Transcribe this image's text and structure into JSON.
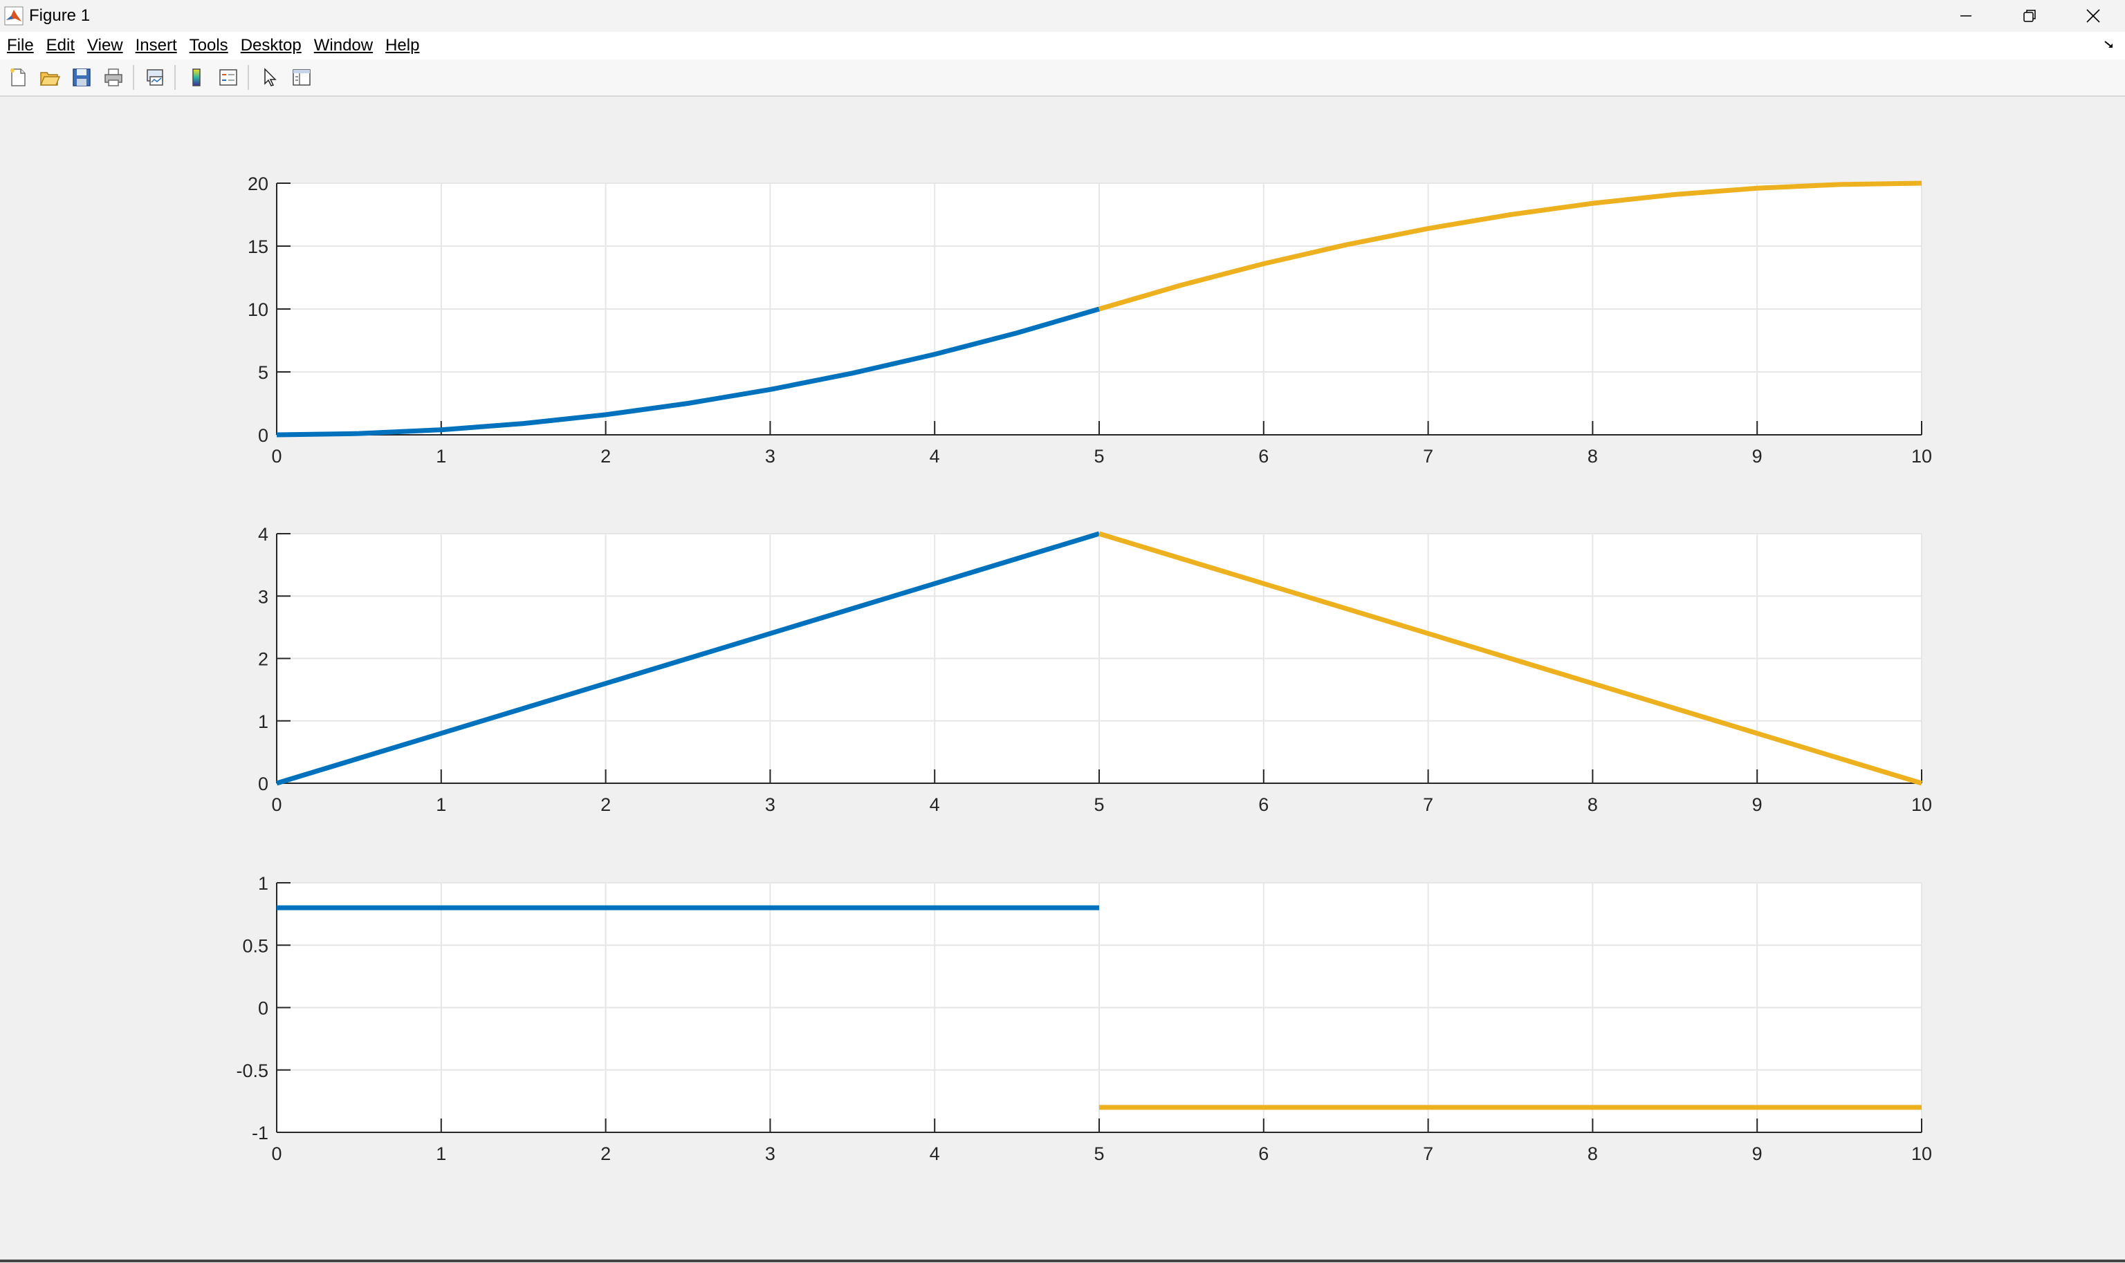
{
  "window": {
    "title": "Figure 1",
    "controls": [
      "minimize-icon",
      "restore-icon",
      "close-icon"
    ]
  },
  "menu": [
    {
      "label": "File"
    },
    {
      "label": "Edit"
    },
    {
      "label": "View"
    },
    {
      "label": "Insert"
    },
    {
      "label": "Tools"
    },
    {
      "label": "Desktop"
    },
    {
      "label": "Window"
    },
    {
      "label": "Help"
    }
  ],
  "toolbar": {
    "buttons": [
      "new-figure-icon",
      "open-file-icon",
      "save-icon",
      "print-icon",
      "link-figure-icon",
      "insert-colorbar-icon",
      "insert-legend-icon",
      "edit-plot-icon",
      "property-inspector-icon"
    ]
  },
  "colors": {
    "series1": "#0072BD",
    "series2": "#EDB120",
    "grid": "#e6e6e6",
    "axis": "#262626"
  },
  "chart_data": [
    {
      "type": "line",
      "xlim": [
        0,
        10
      ],
      "ylim": [
        0,
        20
      ],
      "xticks": [
        0,
        1,
        2,
        3,
        4,
        5,
        6,
        7,
        8,
        9,
        10
      ],
      "yticks": [
        0,
        5,
        10,
        15,
        20
      ],
      "xticklabels": [
        "0",
        "1",
        "2",
        "3",
        "4",
        "5",
        "6",
        "7",
        "8",
        "9",
        "10"
      ],
      "yticklabels": [
        "0",
        "5",
        "10",
        "15",
        "20"
      ],
      "grid": true,
      "series": [
        {
          "color": "#0072BD",
          "x": [
            0,
            0.5,
            1,
            1.5,
            2,
            2.5,
            3,
            3.5,
            4,
            4.5,
            5
          ],
          "y": [
            0,
            0.1,
            0.4,
            0.9,
            1.6,
            2.5,
            3.6,
            4.9,
            6.4,
            8.1,
            10
          ]
        },
        {
          "color": "#EDB120",
          "x": [
            5,
            5.5,
            6,
            6.5,
            7,
            7.5,
            8,
            8.5,
            9,
            9.5,
            10
          ],
          "y": [
            10,
            11.9,
            13.6,
            15.1,
            16.4,
            17.5,
            18.4,
            19.1,
            19.6,
            19.9,
            20
          ]
        }
      ]
    },
    {
      "type": "line",
      "xlim": [
        0,
        10
      ],
      "ylim": [
        0,
        4
      ],
      "xticks": [
        0,
        1,
        2,
        3,
        4,
        5,
        6,
        7,
        8,
        9,
        10
      ],
      "yticks": [
        0,
        1,
        2,
        3,
        4
      ],
      "xticklabels": [
        "0",
        "1",
        "2",
        "3",
        "4",
        "5",
        "6",
        "7",
        "8",
        "9",
        "10"
      ],
      "yticklabels": [
        "0",
        "1",
        "2",
        "3",
        "4"
      ],
      "grid": true,
      "series": [
        {
          "color": "#0072BD",
          "x": [
            0,
            5
          ],
          "y": [
            0,
            4
          ]
        },
        {
          "color": "#EDB120",
          "x": [
            5,
            10
          ],
          "y": [
            4,
            0
          ]
        }
      ]
    },
    {
      "type": "line",
      "xlim": [
        0,
        10
      ],
      "ylim": [
        -1,
        1
      ],
      "xticks": [
        0,
        1,
        2,
        3,
        4,
        5,
        6,
        7,
        8,
        9,
        10
      ],
      "yticks": [
        -1,
        -0.5,
        0,
        0.5,
        1
      ],
      "xticklabels": [
        "0",
        "1",
        "2",
        "3",
        "4",
        "5",
        "6",
        "7",
        "8",
        "9",
        "10"
      ],
      "yticklabels": [
        "-1",
        "-0.5",
        "0",
        "0.5",
        "1"
      ],
      "grid": true,
      "series": [
        {
          "color": "#0072BD",
          "x": [
            0,
            5
          ],
          "y": [
            0.8,
            0.8
          ]
        },
        {
          "color": "#EDB120",
          "x": [
            5,
            10
          ],
          "y": [
            -0.8,
            -0.8
          ]
        }
      ]
    }
  ]
}
